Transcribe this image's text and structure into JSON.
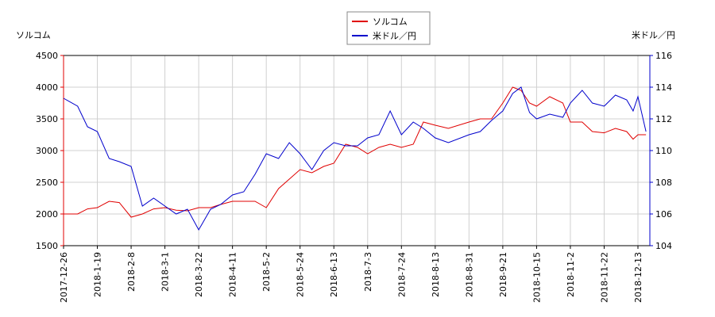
{
  "chart_data": {
    "type": "line",
    "y_label": "ソルコム",
    "y2_label": "米ドル／円",
    "x": [
      "2017-12-26",
      "2018-1-5",
      "2018-1-12",
      "2018-1-19",
      "2018-1-26",
      "2018-2-1",
      "2018-2-8",
      "2018-2-15",
      "2018-2-22",
      "2018-3-1",
      "2018-3-8",
      "2018-3-15",
      "2018-3-22",
      "2018-3-29",
      "2018-4-4",
      "2018-4-11",
      "2018-4-18",
      "2018-4-25",
      "2018-5-2",
      "2018-5-10",
      "2018-5-17",
      "2018-5-24",
      "2018-5-31",
      "2018-6-7",
      "2018-6-13",
      "2018-6-20",
      "2018-6-27",
      "2018-7-3",
      "2018-7-10",
      "2018-7-17",
      "2018-7-24",
      "2018-7-31",
      "2018-8-6",
      "2018-8-13",
      "2018-8-20",
      "2018-8-31",
      "2018-9-7",
      "2018-9-14",
      "2018-9-21",
      "2018-9-28",
      "2018-10-4",
      "2018-10-10",
      "2018-10-15",
      "2018-10-22",
      "2018-10-29",
      "2018-11-2",
      "2018-11-9",
      "2018-11-15",
      "2018-11-22",
      "2018-11-29",
      "2018-12-6",
      "2018-12-10",
      "2018-12-13",
      "2018-12-18"
    ],
    "series": [
      {
        "name": "ソルコム",
        "color": "#e00000",
        "values": [
          2000,
          2000,
          2080,
          2100,
          2200,
          2180,
          1950,
          2000,
          2080,
          2100,
          2060,
          2050,
          2100,
          2100,
          2150,
          2200,
          2200,
          2200,
          2100,
          2400,
          2550,
          2700,
          2650,
          2750,
          2800,
          3100,
          3050,
          2950,
          3050,
          3100,
          3050,
          3100,
          3450,
          3400,
          3350,
          3450,
          3500,
          3500,
          3750,
          4000,
          3950,
          3750,
          3700,
          3850,
          3750,
          3450,
          3450,
          3300,
          3280,
          3350,
          3300,
          3180,
          3250,
          3250
        ]
      },
      {
        "name": "米ドル／円",
        "color": "#0000cc",
        "axis": "y2",
        "values": [
          113.3,
          112.8,
          111.5,
          111.2,
          109.5,
          109.3,
          109.0,
          106.5,
          107.0,
          106.5,
          106.0,
          106.3,
          105.0,
          106.3,
          106.6,
          107.2,
          107.4,
          108.5,
          109.8,
          109.5,
          110.5,
          109.8,
          108.8,
          110.0,
          110.5,
          110.3,
          110.3,
          110.8,
          111.0,
          112.5,
          111.0,
          111.8,
          111.4,
          110.8,
          110.5,
          111.0,
          111.2,
          111.9,
          112.5,
          113.6,
          114.0,
          112.4,
          112.0,
          112.3,
          112.1,
          113.0,
          113.8,
          113.0,
          112.8,
          113.5,
          113.2,
          112.5,
          113.4,
          111.2
        ]
      }
    ],
    "ylim": [
      1500,
      4500
    ],
    "yticks": [
      1500,
      2000,
      2500,
      3000,
      3500,
      4000,
      4500
    ],
    "y2lim": [
      104,
      116
    ],
    "y2ticks": [
      104,
      106,
      108,
      110,
      112,
      114,
      116
    ],
    "xticks": [
      "2017-12-26",
      "2018-1-19",
      "2018-2-8",
      "2018-3-1",
      "2018-3-22",
      "2018-4-11",
      "2018-5-2",
      "2018-5-24",
      "2018-6-13",
      "2018-7-3",
      "2018-7-24",
      "2018-8-13",
      "2018-8-31",
      "2018-9-21",
      "2018-10-15",
      "2018-11-2",
      "2018-11-22",
      "2018-12-13"
    ],
    "grid": true
  }
}
